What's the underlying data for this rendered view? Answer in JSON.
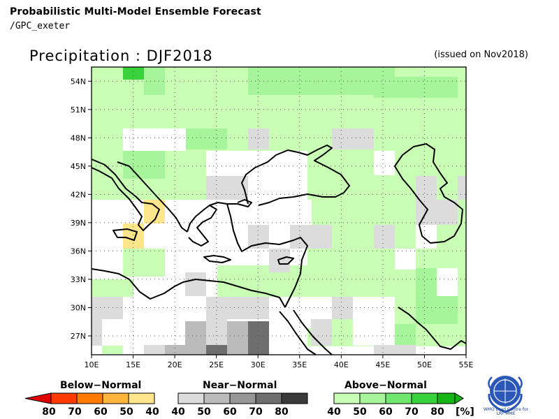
{
  "header": {
    "line1": "Probabilistic Multi-Model Ensemble Forecast",
    "line2": "/GPC_exeter",
    "title": "Precipitation : DJF2018",
    "issued": "(issued on Nov2018)"
  },
  "map": {
    "lat_labels": [
      "54N",
      "51N",
      "48N",
      "45N",
      "42N",
      "39N",
      "36N",
      "33N",
      "30N",
      "27N"
    ],
    "lat_values": [
      54,
      51,
      48,
      45,
      42,
      39,
      36,
      33,
      30,
      27
    ],
    "lon_labels": [
      "10E",
      "15E",
      "20E",
      "25E",
      "30E",
      "35E",
      "40E",
      "45E",
      "50E",
      "55E"
    ],
    "lon_values": [
      10,
      15,
      20,
      25,
      30,
      35,
      40,
      45,
      50,
      55
    ],
    "lon_range": [
      10,
      55
    ],
    "lat_range": [
      25,
      55.5
    ],
    "grid": "dotted"
  },
  "legend": {
    "below_title": "Below−Normal",
    "near_title": "Near−Normal",
    "above_title": "Above−Normal",
    "below_ticks": [
      "80",
      "70",
      "60",
      "50",
      "40"
    ],
    "near_ticks": [
      "40",
      "50",
      "60",
      "70",
      "80"
    ],
    "above_ticks": [
      "40",
      "50",
      "60",
      "70",
      "80"
    ],
    "unit": "[%]",
    "below_colors": [
      "#e00000",
      "#ff3b00",
      "#ff7a00",
      "#ffb43c",
      "#ffe68c"
    ],
    "near_colors": [
      "#dcdcdc",
      "#bbbbbb",
      "#969696",
      "#6e6e6e",
      "#3a3a3a"
    ],
    "above_colors": [
      "#c8ffb4",
      "#a6f59a",
      "#70e870",
      "#3ad23a",
      "#14b414"
    ]
  },
  "logo": {
    "caption_1": "WMO Lead Centre for",
    "caption_2": "LRF MME"
  }
}
